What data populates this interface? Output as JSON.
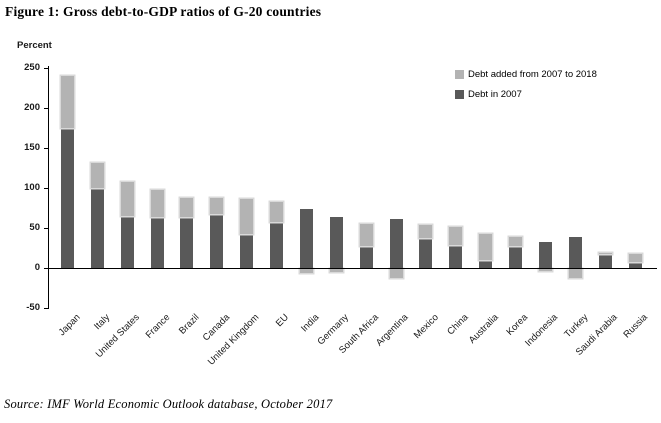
{
  "figure": {
    "title": "Figure 1: Gross debt-to-GDP ratios of G-20 countries",
    "source": "Source: IMF World Economic Outlook database, October 2017"
  },
  "y_axis": {
    "unit_label": "Percent",
    "ticks": [
      250,
      200,
      150,
      100,
      50,
      0,
      -50
    ]
  },
  "legend": {
    "position": "top-right",
    "added_color": "#b3b3b3",
    "debt2007_color": "#595959"
  },
  "chart_data": {
    "type": "bar",
    "stacked": true,
    "orientation": "vertical",
    "title": "Figure 1: Gross debt-to-GDP ratios of G-20 countries",
    "ylabel": "Percent",
    "ylim": [
      -50,
      250
    ],
    "yticks": [
      250,
      200,
      150,
      100,
      50,
      0,
      -50
    ],
    "grid": false,
    "legend_position": "top-right",
    "categories": [
      "Japan",
      "Italy",
      "United States",
      "France",
      "Brazil",
      "Canada",
      "United Kingdom",
      "EU",
      "India",
      "Germany",
      "South Africa",
      "Argentina",
      "Mexico",
      "China",
      "Australia",
      "Korea",
      "Indonesia",
      "Turkey",
      "Saudi Arabia",
      "Russia"
    ],
    "series": [
      {
        "name": "Debt in 2007",
        "color": "#595959",
        "values": [
          175,
          100,
          65,
          64,
          64,
          67,
          42,
          58,
          74,
          64,
          27,
          61,
          37,
          29,
          10,
          28,
          32,
          39,
          17,
          8
        ]
      },
      {
        "name": "Debt added from 2007 to 2018",
        "color": "#b3b3b3",
        "values": [
          65,
          31,
          43,
          33,
          23,
          20,
          44,
          24,
          -5,
          -4,
          28,
          -11,
          17,
          22,
          32,
          11,
          -3,
          -11,
          2,
          9
        ]
      }
    ],
    "totals_2018": [
      240,
      131,
      108,
      97,
      87,
      87,
      86,
      82,
      69,
      60,
      55,
      50,
      54,
      51,
      42,
      39,
      29,
      28,
      19,
      17
    ],
    "note": "Negative light-gray segments (India, Germany, Argentina, Indonesia, Turkey) are drawn below the zero line, indicating debt reduction from 2007 to 2018."
  }
}
